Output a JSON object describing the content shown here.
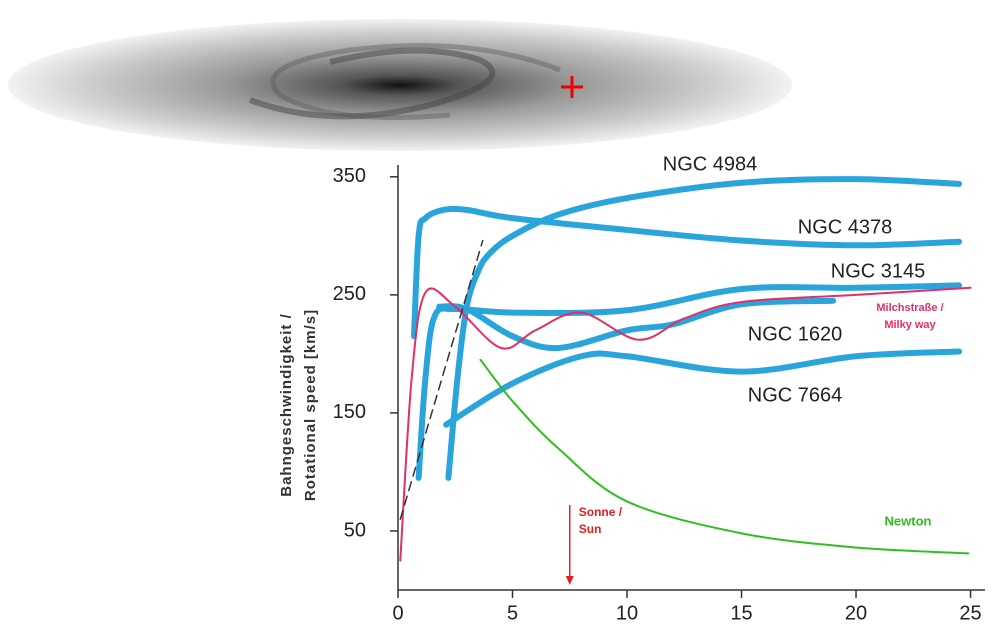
{
  "chart_data": {
    "type": "line",
    "ylabel": [
      "Bahngeschwindigkeit /",
      "Rotational speed [km/s]"
    ],
    "xlim": [
      0,
      25.5
    ],
    "ylim": [
      0,
      360
    ],
    "xticks": [
      0,
      5,
      10,
      15,
      20,
      25
    ],
    "yticks": [
      50,
      150,
      250,
      350
    ],
    "series": [
      {
        "name": "NGC 4984",
        "color": "#2aa5dc",
        "x": [
          2.2,
          2.6,
          3,
          3.5,
          4,
          5,
          7,
          10,
          15,
          20,
          24.5
        ],
        "values": [
          95,
          180,
          240,
          270,
          285,
          300,
          318,
          332,
          345,
          348,
          344
        ]
      },
      {
        "name": "NGC 4378",
        "color": "#2aa5dc",
        "x": [
          0.7,
          0.9,
          1.2,
          2,
          3,
          5,
          10,
          15,
          20,
          24.5
        ],
        "values": [
          215,
          300,
          315,
          322,
          322,
          315,
          305,
          296,
          292,
          295
        ]
      },
      {
        "name": "NGC 3145",
        "color": "#2aa5dc",
        "x": [
          0.9,
          1.2,
          1.6,
          2.5,
          5,
          10,
          15,
          20,
          24.5
        ],
        "values": [
          95,
          180,
          232,
          238,
          235,
          237,
          255,
          256,
          258
        ]
      },
      {
        "name": "NGC 1620",
        "color": "#2aa5dc",
        "x": [
          1.8,
          3,
          5,
          7,
          10,
          12,
          15,
          19
        ],
        "values": [
          240,
          238,
          215,
          205,
          220,
          225,
          242,
          245
        ]
      },
      {
        "name": "NGC 7664",
        "color": "#2aa5dc",
        "x": [
          2.1,
          5,
          8,
          10,
          15,
          20,
          24.5
        ],
        "values": [
          140,
          175,
          198,
          198,
          185,
          198,
          202
        ]
      },
      {
        "name": [
          "Milchstraße /",
          "Milky way"
        ],
        "color": "#e0306a",
        "x": [
          0.1,
          0.6,
          1.2,
          2.5,
          4.5,
          6,
          8,
          10.5,
          12.5,
          15,
          20,
          25
        ],
        "values": [
          25,
          180,
          252,
          240,
          205,
          220,
          235,
          212,
          230,
          244,
          250,
          256
        ]
      },
      {
        "name": "Newton",
        "color": "#2fbf1f",
        "x": [
          3.6,
          5,
          7,
          10,
          15,
          20,
          24.9
        ],
        "values": [
          195,
          160,
          120,
          75,
          48,
          36,
          31
        ]
      },
      {
        "color": "#333333",
        "dashed": true,
        "x": [
          0.1,
          3.7
        ],
        "values": [
          60,
          296
        ]
      }
    ],
    "annotations": [
      {
        "text": [
          "Sonne /",
          "Sun"
        ],
        "x": 7.5,
        "color": "#e02020"
      }
    ]
  }
}
